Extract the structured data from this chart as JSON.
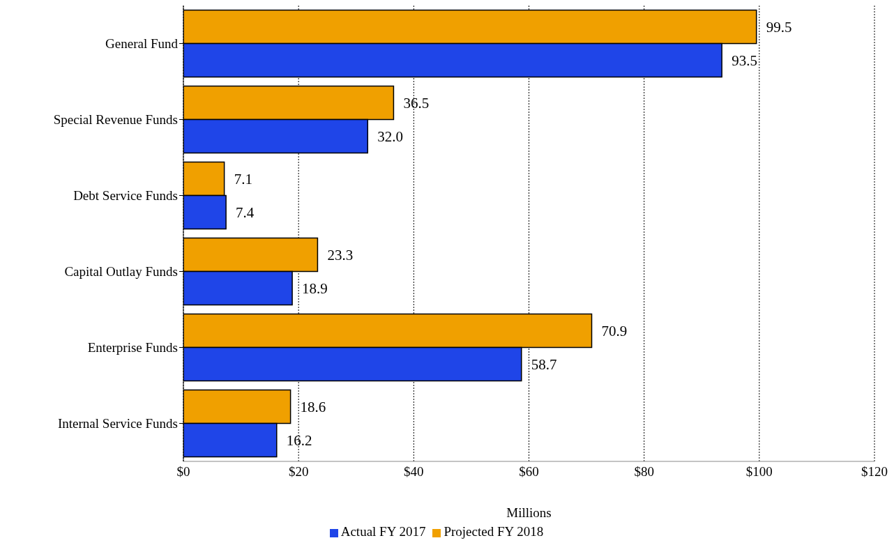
{
  "chart_data": {
    "type": "bar",
    "orientation": "horizontal",
    "categories": [
      "General Fund",
      "Special Revenue Funds",
      "Debt Service Funds",
      "Capital Outlay Funds",
      "Enterprise Funds",
      "Internal Service Funds"
    ],
    "series": [
      {
        "name": "Projected FY 2018",
        "color": "#f0a000",
        "values": [
          99.5,
          36.5,
          7.1,
          23.3,
          70.9,
          18.6
        ],
        "value_labels": [
          "99.5",
          "36.5",
          "7.1",
          "23.3",
          "70.9",
          "18.6"
        ]
      },
      {
        "name": "Actual  FY 2017",
        "color": "#1f45e8",
        "values": [
          93.5,
          32.0,
          7.4,
          18.9,
          58.7,
          16.2
        ],
        "value_labels": [
          "93.5",
          "32.0",
          "7.4",
          "18.9",
          "58.7",
          "16.2"
        ]
      }
    ],
    "xlabel": "Millions",
    "xlim": [
      0,
      120
    ],
    "xticks": [
      {
        "value": 0,
        "label": "$0"
      },
      {
        "value": 20,
        "label": "$20"
      },
      {
        "value": 40,
        "label": "$40"
      },
      {
        "value": 60,
        "label": "$60"
      },
      {
        "value": 80,
        "label": "$80"
      },
      {
        "value": 100,
        "label": "$100"
      },
      {
        "value": 120,
        "label": "$120"
      }
    ],
    "grid": "x",
    "legend": "bottom"
  }
}
